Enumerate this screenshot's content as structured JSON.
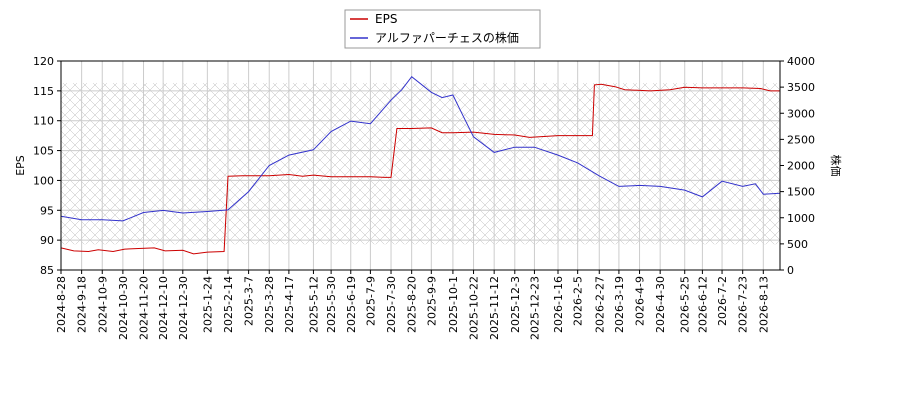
{
  "chart_data": {
    "type": "line",
    "legend": {
      "placement": "top-center",
      "entries": [
        {
          "label": "EPS",
          "color": "#cc0000"
        },
        {
          "label": "アルファパーチェスの株価",
          "color": "#3333cc"
        }
      ]
    },
    "left_axis": {
      "label": "EPS",
      "range": [
        85,
        120
      ],
      "ticks": [
        "120",
        "115",
        "110",
        "105",
        "100",
        "95",
        "90",
        "85"
      ]
    },
    "right_axis": {
      "label": "株価",
      "range": [
        0,
        4000
      ],
      "ticks": [
        "4000",
        "3500",
        "3000",
        "2500",
        "2000",
        "1500",
        "1000",
        "500",
        "0"
      ]
    },
    "x_axis": {
      "range": [
        "2024-08-28",
        "2026-08-30"
      ],
      "ticks": [
        "2024-8-28",
        "2024-9-18",
        "2024-10-9",
        "2024-10-30",
        "2024-11-20",
        "2024-12-10",
        "2024-12-30",
        "2025-1-24",
        "2025-2-14",
        "2025-3-7",
        "2025-3-28",
        "2025-4-17",
        "2025-5-12",
        "2025-5-30",
        "2025-6-19",
        "2025-7-9",
        "2025-7-30",
        "2025-8-20",
        "2025-9-9",
        "2025-10-1",
        "2025-10-22",
        "2025-11-12",
        "2025-12-3",
        "2025-12-23",
        "2026-1-16",
        "2026-2-5",
        "2026-2-27",
        "2026-3-19",
        "2026-4-9",
        "2026-4-30",
        "2026-5-25",
        "2026-6-12",
        "2026-7-2",
        "2026-7-23",
        "2026-8-13"
      ]
    },
    "grid": true,
    "hatched_region": {
      "y_range": [
        89.3,
        116.3
      ]
    },
    "series": [
      {
        "name": "EPS",
        "axis": "left",
        "color": "#cc0000",
        "points": [
          [
            "2024-08-28",
            88.7
          ],
          [
            "2024-09-10",
            88.2
          ],
          [
            "2024-09-25",
            88.1
          ],
          [
            "2024-10-05",
            88.4
          ],
          [
            "2024-10-20",
            88.1
          ],
          [
            "2024-11-01",
            88.5
          ],
          [
            "2024-11-15",
            88.6
          ],
          [
            "2024-12-01",
            88.7
          ],
          [
            "2024-12-12",
            88.2
          ],
          [
            "2024-12-30",
            88.3
          ],
          [
            "2025-01-10",
            87.7
          ],
          [
            "2025-01-24",
            88.0
          ],
          [
            "2025-02-10",
            88.1
          ],
          [
            "2025-02-14",
            100.7
          ],
          [
            "2025-03-01",
            100.8
          ],
          [
            "2025-03-28",
            100.8
          ],
          [
            "2025-04-17",
            101.0
          ],
          [
            "2025-05-01",
            100.7
          ],
          [
            "2025-05-12",
            100.9
          ],
          [
            "2025-05-30",
            100.6
          ],
          [
            "2025-06-19",
            100.6
          ],
          [
            "2025-07-09",
            100.6
          ],
          [
            "2025-07-25",
            100.5
          ],
          [
            "2025-07-30",
            100.5
          ],
          [
            "2025-08-05",
            108.7
          ],
          [
            "2025-08-20",
            108.7
          ],
          [
            "2025-09-09",
            108.8
          ],
          [
            "2025-09-20",
            108.0
          ],
          [
            "2025-10-01",
            108.0
          ],
          [
            "2025-10-22",
            108.1
          ],
          [
            "2025-11-12",
            107.7
          ],
          [
            "2025-12-03",
            107.6
          ],
          [
            "2025-12-18",
            107.2
          ],
          [
            "2026-01-16",
            107.5
          ],
          [
            "2026-02-05",
            107.5
          ],
          [
            "2026-02-20",
            107.5
          ],
          [
            "2026-02-22",
            116.0
          ],
          [
            "2026-03-01",
            116.1
          ],
          [
            "2026-03-15",
            115.7
          ],
          [
            "2026-03-25",
            115.2
          ],
          [
            "2026-04-20",
            115.0
          ],
          [
            "2026-05-10",
            115.2
          ],
          [
            "2026-05-25",
            115.6
          ],
          [
            "2026-06-12",
            115.5
          ],
          [
            "2026-07-02",
            115.5
          ],
          [
            "2026-07-23",
            115.5
          ],
          [
            "2026-08-10",
            115.4
          ],
          [
            "2026-08-20",
            115.0
          ],
          [
            "2026-08-30",
            115.0
          ]
        ]
      },
      {
        "name": "アルファパーチェスの株価",
        "axis": "right",
        "color": "#3333cc",
        "points": [
          [
            "2024-08-28",
            1030
          ],
          [
            "2024-09-18",
            960
          ],
          [
            "2024-10-09",
            960
          ],
          [
            "2024-10-30",
            940
          ],
          [
            "2024-11-20",
            1100
          ],
          [
            "2024-12-10",
            1140
          ],
          [
            "2024-12-30",
            1090
          ],
          [
            "2025-01-24",
            1120
          ],
          [
            "2025-02-14",
            1150
          ],
          [
            "2025-03-07",
            1500
          ],
          [
            "2025-03-28",
            2000
          ],
          [
            "2025-04-17",
            2200
          ],
          [
            "2025-05-12",
            2300
          ],
          [
            "2025-05-30",
            2650
          ],
          [
            "2025-06-19",
            2850
          ],
          [
            "2025-07-09",
            2800
          ],
          [
            "2025-07-30",
            3250
          ],
          [
            "2025-08-10",
            3450
          ],
          [
            "2025-08-20",
            3700
          ],
          [
            "2025-09-09",
            3400
          ],
          [
            "2025-09-20",
            3300
          ],
          [
            "2025-10-01",
            3350
          ],
          [
            "2025-10-10",
            3000
          ],
          [
            "2025-10-22",
            2550
          ],
          [
            "2025-11-12",
            2250
          ],
          [
            "2025-12-03",
            2350
          ],
          [
            "2025-12-23",
            2350
          ],
          [
            "2026-01-16",
            2200
          ],
          [
            "2026-02-05",
            2050
          ],
          [
            "2026-02-27",
            1800
          ],
          [
            "2026-03-19",
            1600
          ],
          [
            "2026-04-09",
            1620
          ],
          [
            "2026-04-30",
            1600
          ],
          [
            "2026-05-25",
            1530
          ],
          [
            "2026-06-12",
            1400
          ],
          [
            "2026-07-02",
            1700
          ],
          [
            "2026-07-23",
            1600
          ],
          [
            "2026-08-05",
            1650
          ],
          [
            "2026-08-13",
            1450
          ],
          [
            "2026-08-30",
            1470
          ]
        ]
      }
    ]
  }
}
